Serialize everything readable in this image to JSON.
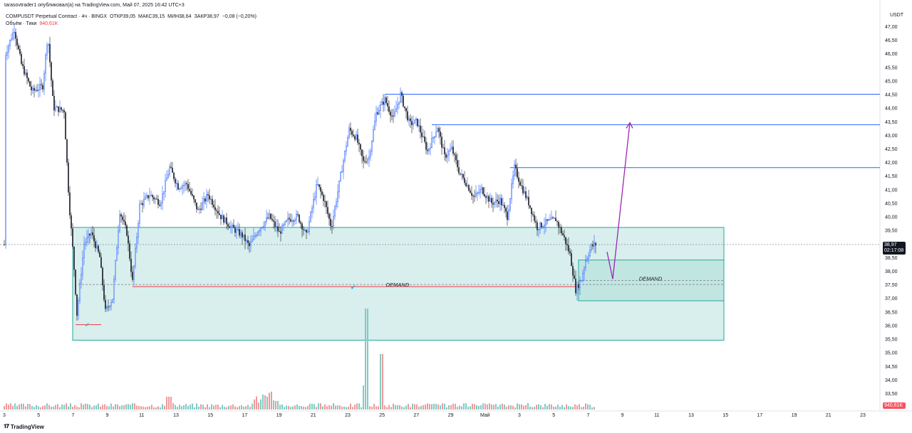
{
  "header": {
    "publisher": "tarasovtrader1 опубликовал(а) на TradingView.com, Май 07, 2025 16:42 UTC+3"
  },
  "legend": {
    "symbol": "COMPUSDT Perpetual Contract · 4ч · BINGX",
    "open_label": "ОТКР",
    "open": "39,05",
    "high_label": "МАКС",
    "high": "39,15",
    "low_label": "МИН",
    "low": "38,64",
    "close_label": "ЗАКР",
    "close": "38,97",
    "change": "−0,08 (−0,20%)",
    "volume_label": "Объём · Тики",
    "volume": "940,61K"
  },
  "axis": {
    "currency": "USDT",
    "price_ticks": [
      "47,00",
      "46,50",
      "46,00",
      "45,50",
      "45,00",
      "44,50",
      "44,00",
      "43,50",
      "43,00",
      "42,50",
      "42,00",
      "41,50",
      "41,00",
      "40,50",
      "40,00",
      "39,50",
      "39,00",
      "38,50",
      "38,00",
      "37,50",
      "37,00",
      "36,50",
      "36,00",
      "35,50",
      "35,00",
      "34,50",
      "34,00",
      "33,50"
    ],
    "time_ticks": [
      "3",
      "5",
      "7",
      "9",
      "11",
      "13",
      "15",
      "17",
      "19",
      "21",
      "23",
      "25",
      "27",
      "29",
      "Май",
      "3",
      "5",
      "7",
      "9",
      "11",
      "13",
      "15",
      "17",
      "19",
      "21",
      "23"
    ],
    "last_price": "38,97",
    "countdown": "02:17:08",
    "volume_tag": "940,61K"
  },
  "annotations": {
    "demand_left": "DEMAND",
    "demand_right": "DEMAND"
  },
  "colors": {
    "up": "#2962ff",
    "down": "#131722",
    "zone_fill": "#b2dfdb",
    "zone_border": "#26a69a",
    "level_line": "#2962ff",
    "projection": "#9c27b0",
    "demand_line": "#f23645",
    "vol_up": "#80cbc4",
    "vol_down": "#ef9a9a"
  },
  "footer": {
    "brand": "TradingView"
  }
}
